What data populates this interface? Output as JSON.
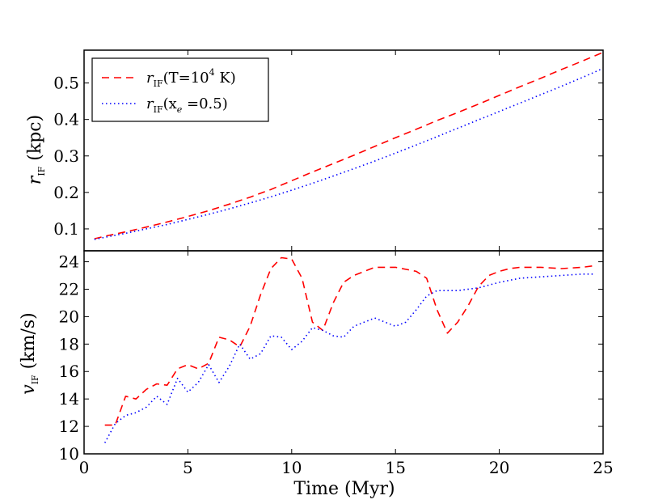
{
  "chart_data": [
    {
      "type": "line",
      "panel": "top",
      "xlim": [
        0,
        25
      ],
      "ylim": [
        0.04,
        0.59
      ],
      "yticks": [
        0.1,
        0.2,
        0.3,
        0.4,
        0.5
      ],
      "ytick_labels": [
        "0.1",
        "0.2",
        "0.3",
        "0.4",
        "0.5"
      ],
      "ylabel_main": "r",
      "ylabel_sub": "IF",
      "ylabel_unit": " (kpc)",
      "legend": {
        "placement": "upper-left",
        "entries": [
          {
            "series": 0,
            "main": "r",
            "sub": "IF",
            "rest": "(T=10",
            "sup": "4",
            "tail": "  K)"
          },
          {
            "series": 1,
            "main": "r",
            "sub": "IF",
            "rest": "(x",
            "sub2": "e",
            "tail": " =0.5)"
          }
        ]
      },
      "series": [
        {
          "name": "rIF(T=10^4 K)",
          "color": "#ff0000",
          "style": "dashed",
          "x": [
            0.5,
            1,
            2,
            3,
            4,
            5,
            6,
            7,
            8,
            9,
            10,
            11,
            12,
            13,
            14,
            15,
            16,
            17,
            18,
            19,
            20,
            21,
            22,
            23,
            24,
            25
          ],
          "y": [
            0.073,
            0.08,
            0.092,
            0.105,
            0.119,
            0.134,
            0.15,
            0.168,
            0.187,
            0.208,
            0.232,
            0.256,
            0.279,
            0.302,
            0.326,
            0.35,
            0.373,
            0.397,
            0.419,
            0.442,
            0.466,
            0.49,
            0.513,
            0.537,
            0.56,
            0.584
          ]
        },
        {
          "name": "rIF(xe=0.5)",
          "color": "#0000ff",
          "style": "dotted",
          "x": [
            0.5,
            1,
            2,
            3,
            4,
            5,
            6,
            7,
            8,
            9,
            10,
            11,
            12,
            13,
            14,
            15,
            16,
            17,
            18,
            19,
            20,
            21,
            22,
            23,
            24,
            25
          ],
          "y": [
            0.071,
            0.077,
            0.088,
            0.1,
            0.112,
            0.126,
            0.14,
            0.155,
            0.171,
            0.188,
            0.206,
            0.225,
            0.245,
            0.265,
            0.286,
            0.308,
            0.33,
            0.353,
            0.376,
            0.399,
            0.422,
            0.445,
            0.468,
            0.491,
            0.515,
            0.54
          ]
        }
      ]
    },
    {
      "type": "line",
      "panel": "bottom",
      "xlim": [
        0,
        25
      ],
      "ylim": [
        10,
        24.8
      ],
      "xticks": [
        0,
        5,
        10,
        15,
        20,
        25
      ],
      "xtick_labels": [
        "0",
        "5",
        "10",
        "15",
        "20",
        "25"
      ],
      "yticks": [
        10,
        12,
        14,
        16,
        18,
        20,
        22,
        24
      ],
      "ytick_labels": [
        "10",
        "12",
        "14",
        "16",
        "18",
        "20",
        "22",
        "24"
      ],
      "xlabel": "Time (Myr)",
      "ylabel_main": "v",
      "ylabel_sub": "IF",
      "ylabel_unit": " (km/s)",
      "series": [
        {
          "name": "vIF(T=10^4 K)",
          "color": "#ff0000",
          "style": "dashed",
          "x": [
            1.0,
            1.5,
            2.0,
            2.5,
            3.0,
            3.5,
            4.0,
            4.5,
            5.0,
            5.5,
            6.0,
            6.5,
            7.0,
            7.5,
            8.0,
            8.5,
            9.0,
            9.5,
            10.0,
            10.5,
            11.0,
            11.5,
            12.0,
            12.5,
            13.0,
            14.0,
            15.0,
            16.0,
            16.5,
            17.0,
            17.5,
            18.0,
            18.5,
            19.0,
            19.5,
            20.0,
            20.5,
            21.0,
            21.5,
            22.0,
            23.0,
            24.0,
            24.5
          ],
          "y": [
            12.1,
            12.1,
            14.2,
            14.0,
            14.7,
            15.1,
            15.0,
            16.2,
            16.5,
            16.2,
            16.6,
            18.5,
            18.3,
            17.8,
            19.3,
            21.6,
            23.5,
            24.3,
            24.2,
            22.8,
            19.6,
            19.0,
            21.0,
            22.5,
            23.0,
            23.6,
            23.6,
            23.3,
            22.8,
            20.5,
            18.8,
            19.6,
            20.8,
            22.2,
            23.0,
            23.3,
            23.5,
            23.6,
            23.6,
            23.6,
            23.5,
            23.6,
            23.7
          ]
        },
        {
          "name": "vIF(xe=0.5)",
          "color": "#0000ff",
          "style": "dotted",
          "x": [
            1.0,
            1.5,
            2.0,
            2.5,
            3.0,
            3.5,
            4.0,
            4.5,
            5.0,
            5.5,
            6.0,
            6.5,
            7.0,
            7.5,
            8.0,
            8.5,
            9.0,
            9.5,
            10.0,
            10.5,
            11.0,
            11.5,
            12.0,
            12.5,
            13.0,
            14.0,
            15.0,
            15.5,
            16.0,
            16.5,
            17.0,
            18.0,
            19.0,
            20.0,
            21.0,
            22.0,
            23.0,
            24.0,
            24.5
          ],
          "y": [
            10.8,
            12.2,
            12.8,
            13.0,
            13.4,
            14.2,
            13.6,
            15.5,
            14.5,
            15.2,
            16.5,
            15.2,
            16.4,
            18.0,
            16.9,
            17.3,
            18.6,
            18.5,
            17.6,
            18.2,
            19.2,
            19.0,
            18.6,
            18.5,
            19.3,
            19.9,
            19.3,
            19.6,
            20.5,
            21.5,
            21.9,
            21.9,
            22.1,
            22.5,
            22.8,
            22.9,
            23.0,
            23.1,
            23.1
          ]
        }
      ]
    }
  ]
}
